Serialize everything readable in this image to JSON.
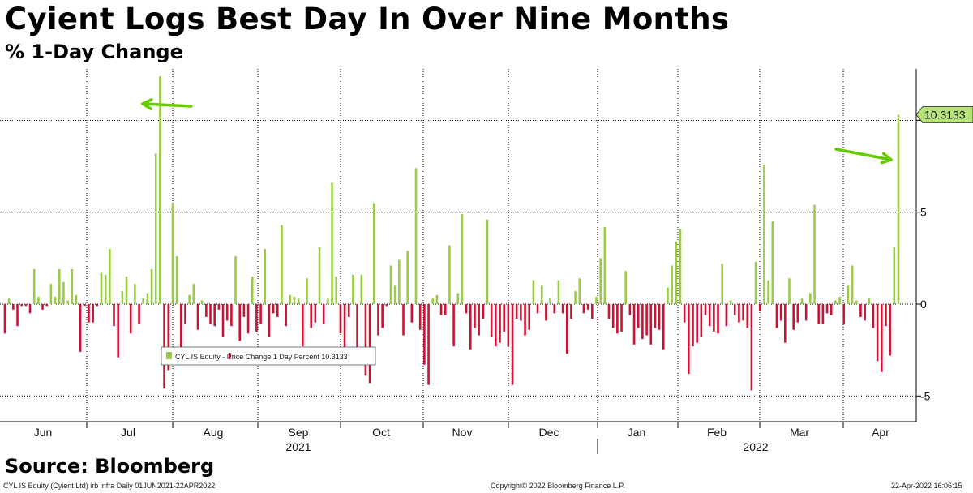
{
  "title": "Cyient Logs Best Day In Over Nine Months",
  "subtitle": "% 1-Day Change",
  "source": "Source: Bloomberg",
  "footer": {
    "left": "CYL IS Equity (Cyient Ltd) irb infra  Daily 01JUN2021-22APR2022",
    "center": "Copyright© 2022 Bloomberg Finance L.P.",
    "right": "22-Apr-2022 16:06:15"
  },
  "colors": {
    "positive": "#99cc44",
    "negative": "#cc1133",
    "grid": "#000000",
    "last_value_label": "#b6e37a",
    "arrow": "#66cc00"
  },
  "chart_data": {
    "type": "bar",
    "title": "Cyient Logs Best Day In Over Nine Months",
    "subtitle": "% 1-Day Change",
    "series": [
      {
        "name": "CYL IS Equity - Price Change 1 Day Percent",
        "last_value": "10.3133",
        "values": [
          -1.6,
          0.3,
          -0.3,
          -1.2,
          -0.1,
          -0.1,
          -0.5,
          1.9,
          0.4,
          -0.3,
          -0.1,
          1.1,
          0.4,
          1.9,
          1.2,
          0.2,
          1.9,
          0.5,
          -2.6,
          -0.1,
          -1.0,
          -1.0,
          -0.1,
          1.7,
          1.6,
          3.0,
          -1.2,
          -2.9,
          0.7,
          1.5,
          -1.6,
          1.1,
          -1.1,
          0.3,
          0.6,
          1.9,
          8.2,
          12.4,
          -4.6,
          -3.6,
          5.5,
          2.6,
          -2.8,
          -1.1,
          0.5,
          1.1,
          -1.4,
          0.2,
          -0.7,
          -1.1,
          -1.2,
          -0.3,
          -1.8,
          -0.9,
          -1.2,
          2.6,
          -2.0,
          -0.7,
          -1.6,
          1.5,
          -1.5,
          -1.1,
          3.0,
          -1.8,
          -0.5,
          -0.7,
          4.3,
          -1.2,
          0.5,
          0.4,
          0.3,
          -2.3,
          1.4,
          -1.3,
          -1.0,
          3.1,
          -1.1,
          0.3,
          6.6,
          1.5,
          -1.6,
          -2.5,
          -0.7,
          1.6,
          -3.1,
          1.6,
          -3.9,
          -4.3,
          5.5,
          -1.7,
          -1.3,
          -0.1,
          2.1,
          1.0,
          2.4,
          -1.7,
          2.9,
          -1.0,
          7.4,
          -1.4,
          -3.3,
          -4.4,
          0.3,
          0.5,
          -0.6,
          -0.6,
          3.2,
          -2.3,
          0.6,
          4.9,
          -0.5,
          -2.5,
          -1.3,
          -1.7,
          -0.8,
          4.6,
          -1.8,
          -2.3,
          -2.1,
          -1.5,
          -2.3,
          -4.4,
          -0.8,
          -0.9,
          -1.7,
          -1.4,
          1.3,
          -0.5,
          1.0,
          -0.9,
          0.3,
          -0.5,
          1.3,
          -0.5,
          -2.7,
          -0.8,
          0.7,
          1.4,
          -0.5,
          -0.3,
          -0.8,
          0.4,
          2.5,
          4.2,
          -0.8,
          -1.3,
          -1.6,
          -1.5,
          1.8,
          -0.6,
          -2.2,
          -1.3,
          -1.9,
          -1.7,
          -2.2,
          -1.3,
          -1.4,
          -2.5,
          0.9,
          2.1,
          3.4,
          4.1,
          -1.0,
          -3.8,
          -2.3,
          -2.1,
          -1.8,
          -0.6,
          -1.2,
          -1.5,
          -1.6,
          2.2,
          -1.2,
          0.2,
          -0.6,
          -1.0,
          -0.9,
          -1.3,
          -4.7,
          2.3,
          -0.4,
          7.6,
          1.3,
          4.5,
          -1.3,
          -0.9,
          -2.1,
          1.4,
          -1.4,
          -1.0,
          0.3,
          -0.9,
          0.6,
          5.4,
          -1.1,
          -1.1,
          -0.5,
          -0.6,
          0.2,
          0.4,
          -1.1,
          1.0,
          2.1,
          0.2,
          -0.7,
          -0.9,
          0.3,
          -1.3,
          -3.1,
          -3.7,
          -1.2,
          -2.8,
          3.1,
          10.3133
        ]
      }
    ],
    "ylim": [
      -6.4,
      12.8
    ],
    "yticks": [
      -5,
      0,
      5
    ],
    "ytick_labels": [
      "-5",
      "0",
      "5"
    ],
    "month_labels": [
      "Jun",
      "Jul",
      "Aug",
      "Sep",
      "Oct",
      "Nov",
      "Dec",
      "Jan",
      "Feb",
      "Mar",
      "Apr"
    ],
    "year_labels": [
      "2021",
      "2022"
    ],
    "legend_label": "CYL IS Equity - Price Change 1 Day Percent 10.3133",
    "grid": true,
    "legend_position": "lower-left inside plot"
  }
}
